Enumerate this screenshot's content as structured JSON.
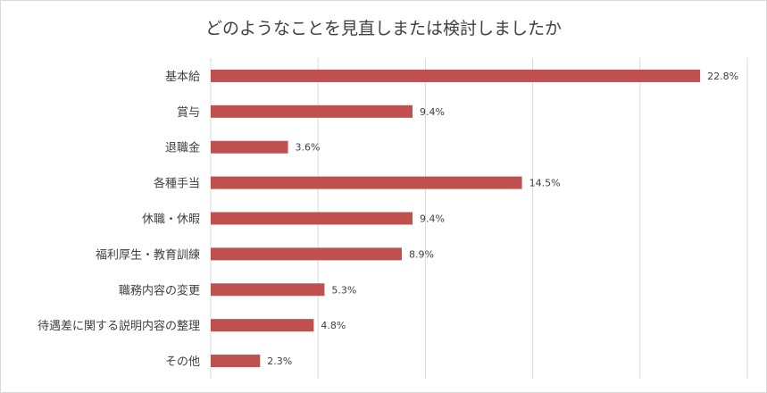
{
  "chart_data": {
    "type": "bar",
    "orientation": "horizontal",
    "title": "どのようなことを見直しまたは検討しましたか",
    "categories": [
      "基本給",
      "賞与",
      "退職金",
      "各種手当",
      "休職・休暇",
      "福利厚生・教育訓練",
      "職務内容の変更",
      "待遇差に関する説明内容の整理",
      "その他"
    ],
    "values": [
      22.8,
      9.4,
      3.6,
      14.5,
      9.4,
      8.9,
      5.3,
      4.8,
      2.3
    ],
    "value_labels": [
      "22.8%",
      "9.4%",
      "3.6%",
      "14.5%",
      "9.4%",
      "8.9%",
      "5.3%",
      "4.8%",
      "2.3%"
    ],
    "xlim": [
      0,
      25
    ],
    "gridlines": [
      0,
      5,
      10,
      15,
      20,
      25
    ],
    "grid": true,
    "legend": "none",
    "bar_color": "#c0504d"
  }
}
